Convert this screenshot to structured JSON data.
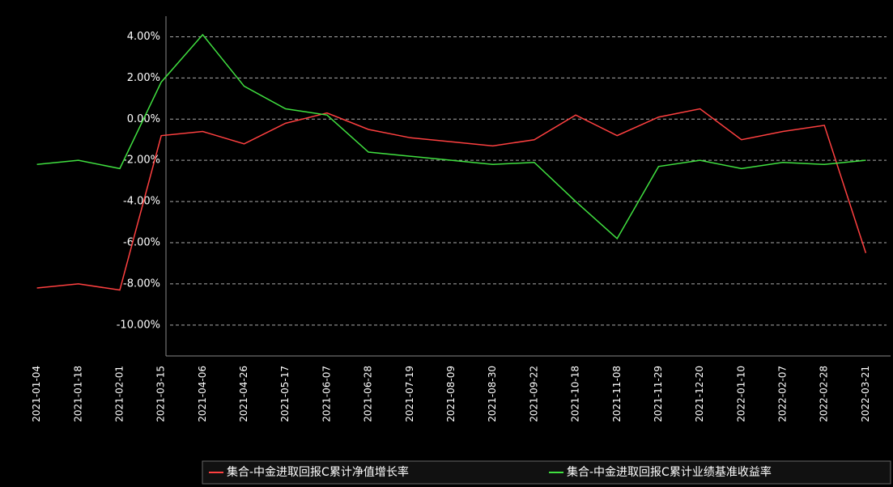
{
  "chart_data": {
    "type": "line",
    "categories": [
      "2021-01-04",
      "2021-01-18",
      "2021-02-01",
      "2021-03-15",
      "2021-04-06",
      "2021-04-26",
      "2021-05-17",
      "2021-06-07",
      "2021-06-28",
      "2021-07-19",
      "2021-08-09",
      "2021-08-30",
      "2021-09-22",
      "2021-10-18",
      "2021-11-08",
      "2021-11-29",
      "2021-12-20",
      "2022-01-10",
      "2022-02-07",
      "2022-02-28",
      "2022-03-21"
    ],
    "series": [
      {
        "name": "集合-中金进取回报C累计净值增长率",
        "color": "#ff4040",
        "values": [
          -8.2,
          -8.0,
          -8.3,
          -0.8,
          -0.6,
          -1.2,
          -0.2,
          0.3,
          -0.5,
          -0.9,
          -1.1,
          -1.3,
          -1.0,
          0.2,
          -0.8,
          0.1,
          0.5,
          -1.0,
          -0.6,
          -0.3,
          -6.5
        ]
      },
      {
        "name": "集合-中金进取回报C累计业绩基准收益率",
        "color": "#40e040",
        "values": [
          -2.2,
          -2.0,
          -2.4,
          1.8,
          4.1,
          1.6,
          0.5,
          0.2,
          -1.6,
          -1.8,
          -2.0,
          -2.2,
          -2.1,
          -4.0,
          -5.8,
          -2.3,
          -2.0,
          -2.4,
          -2.1,
          -2.2,
          -2.0
        ]
      }
    ],
    "ylim": [
      -11.5,
      5
    ],
    "yticks": [
      {
        "value": 4,
        "label": "4.00%"
      },
      {
        "value": 2,
        "label": "2.00%"
      },
      {
        "value": 0,
        "label": "0.00%"
      },
      {
        "value": -2,
        "label": "-2.00%"
      },
      {
        "value": -4,
        "label": "-4.00%"
      },
      {
        "value": -6,
        "label": "-6.00%"
      },
      {
        "value": -8,
        "label": "-8.00%"
      },
      {
        "value": -10,
        "label": "-10.00%"
      }
    ],
    "grid": true
  }
}
